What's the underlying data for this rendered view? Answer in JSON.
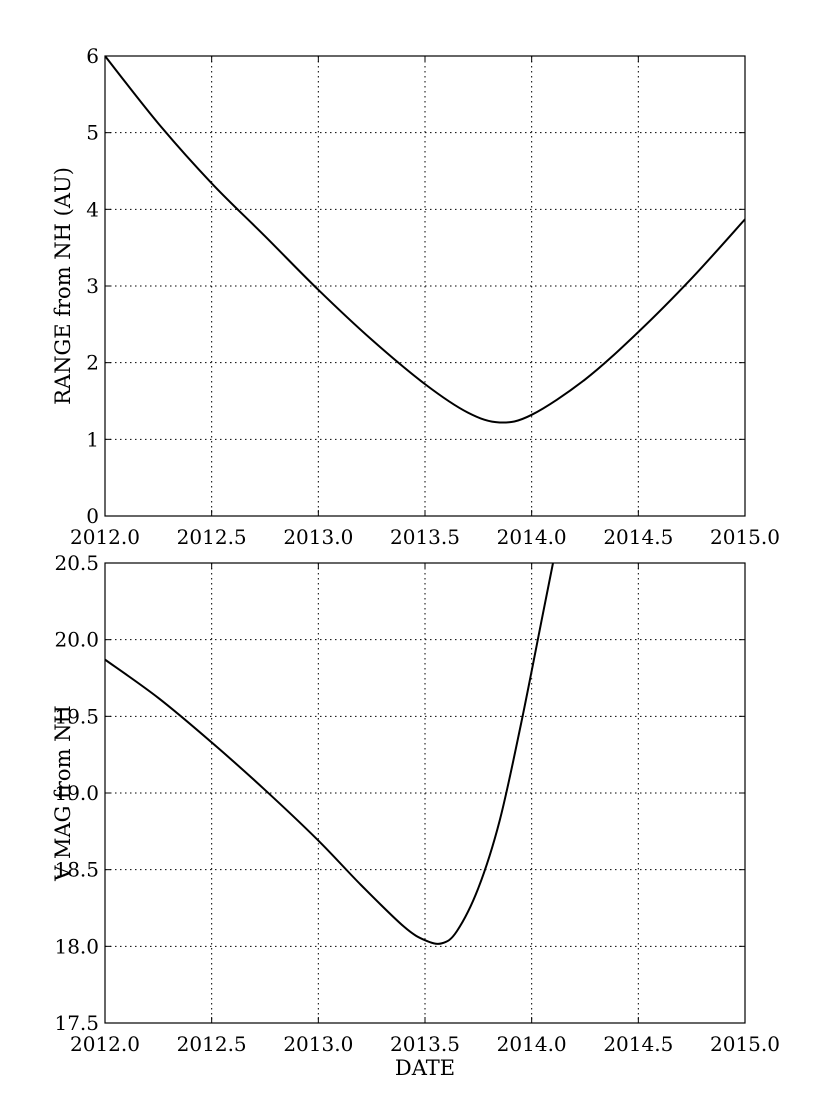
{
  "chart_data": [
    {
      "type": "line",
      "title": "",
      "xlabel": "",
      "ylabel": "RANGE from NH (AU)",
      "xlim": [
        2012.0,
        2015.0
      ],
      "ylim": [
        0,
        6
      ],
      "xticks": [
        "2012.0",
        "2012.5",
        "2013.0",
        "2013.5",
        "2014.0",
        "2014.5",
        "2015.0"
      ],
      "yticks": [
        "0",
        "1",
        "2",
        "3",
        "4",
        "5",
        "6"
      ],
      "grid": true,
      "series": [
        {
          "x": [
            2012.0,
            2012.25,
            2012.5,
            2012.75,
            2013.0,
            2013.25,
            2013.5,
            2013.7,
            2013.85,
            2014.0,
            2014.25,
            2014.5,
            2014.75,
            2015.0
          ],
          "y": [
            6.0,
            5.12,
            4.34,
            3.65,
            2.95,
            2.3,
            1.72,
            1.35,
            1.22,
            1.32,
            1.78,
            2.4,
            3.1,
            3.87
          ]
        }
      ]
    },
    {
      "type": "line",
      "title": "",
      "xlabel": "DATE",
      "ylabel": "V MAG from NH",
      "xlim": [
        2012.0,
        2015.0
      ],
      "ylim": [
        17.5,
        20.5
      ],
      "xticks": [
        "2012.0",
        "2012.5",
        "2013.0",
        "2013.5",
        "2014.0",
        "2014.5",
        "2015.0"
      ],
      "yticks": [
        "17.5",
        "18.0",
        "18.5",
        "19.0",
        "19.5",
        "20.0",
        "20.5"
      ],
      "grid": true,
      "series": [
        {
          "x": [
            2012.0,
            2012.25,
            2012.5,
            2012.75,
            2013.0,
            2013.2,
            2013.4,
            2013.5,
            2013.58,
            2013.65,
            2013.75,
            2013.85,
            2013.95,
            2014.05,
            2014.1
          ],
          "y": [
            19.87,
            19.62,
            19.33,
            19.02,
            18.69,
            18.4,
            18.13,
            18.04,
            18.02,
            18.1,
            18.38,
            18.82,
            19.45,
            20.15,
            20.5
          ]
        }
      ]
    }
  ]
}
